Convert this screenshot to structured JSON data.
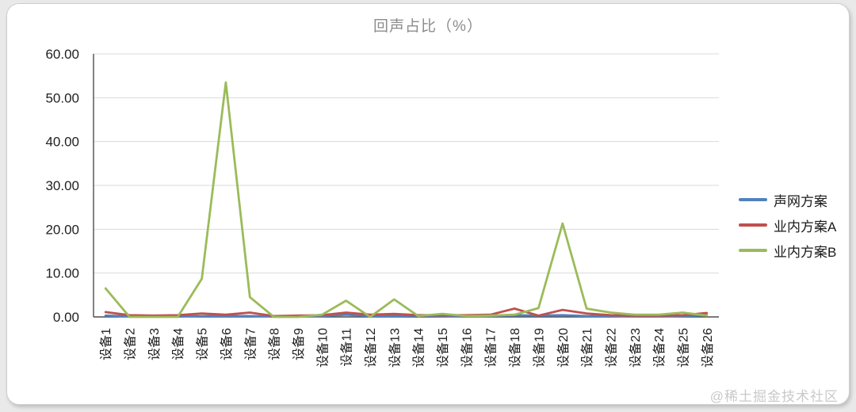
{
  "watermark": "@稀土掘金技术社区",
  "chart_data": {
    "type": "line",
    "title": "回声占比（%）",
    "title_color": "#8c8c8c",
    "categories": [
      "设备1",
      "设备2",
      "设备3",
      "设备4",
      "设备5",
      "设备6",
      "设备7",
      "设备8",
      "设备9",
      "设备10",
      "设备11",
      "设备12",
      "设备13",
      "设备14",
      "设备15",
      "设备16",
      "设备17",
      "设备18",
      "设备19",
      "设备20",
      "设备21",
      "设备22",
      "设备23",
      "设备24",
      "设备25",
      "设备26"
    ],
    "series": [
      {
        "name": "声网方案",
        "color": "#4F81BD",
        "values": [
          0.3,
          0.1,
          0.1,
          0.1,
          0.2,
          0.2,
          0.2,
          0.1,
          0.1,
          0.2,
          0.5,
          0.2,
          0.2,
          0.3,
          0.2,
          0.1,
          0.2,
          0.4,
          0.3,
          0.4,
          0.2,
          0.2,
          0.1,
          0.1,
          0.2,
          0.4
        ]
      },
      {
        "name": "业内方案A",
        "color": "#C0504D",
        "values": [
          1.1,
          0.4,
          0.3,
          0.4,
          0.8,
          0.5,
          1.0,
          0.2,
          0.3,
          0.4,
          1.0,
          0.5,
          0.7,
          0.4,
          0.4,
          0.4,
          0.5,
          1.9,
          0.3,
          1.6,
          0.8,
          0.4,
          0.3,
          0.3,
          0.4,
          0.9
        ]
      },
      {
        "name": "业内方案B",
        "color": "#9BBB59",
        "values": [
          6.5,
          0.0,
          0.0,
          0.0,
          8.7,
          53.5,
          4.5,
          0.0,
          0.0,
          0.5,
          3.7,
          0.0,
          4.0,
          0.2,
          0.7,
          0.2,
          0.3,
          0.5,
          2.0,
          21.3,
          1.9,
          1.0,
          0.5,
          0.5,
          1.0,
          0.3
        ]
      }
    ],
    "ylim": [
      0,
      60
    ],
    "ytick_step": 10,
    "ytick_labels": [
      "0.00",
      "10.00",
      "20.00",
      "30.00",
      "40.00",
      "50.00",
      "60.00"
    ],
    "xlabel": "",
    "ylabel": "",
    "grid": true,
    "gridline_color": "#d9d9d9",
    "axis_color": "#4d4d4d",
    "tick_label_color": "#1f1f1f",
    "legend_position": "right"
  }
}
